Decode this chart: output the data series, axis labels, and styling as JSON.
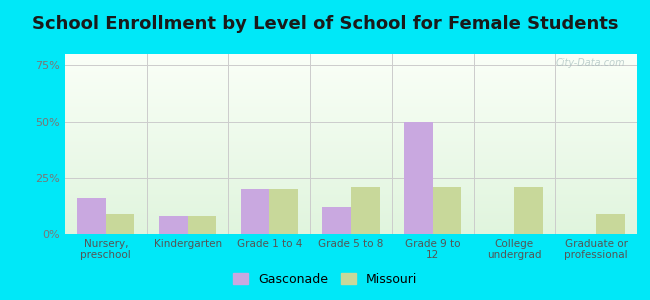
{
  "title": "School Enrollment by Level of School for Female Students",
  "categories": [
    "Nursery,\npreschool",
    "Kindergarten",
    "Grade 1 to 4",
    "Grade 5 to 8",
    "Grade 9 to\n12",
    "College\nundergrad",
    "Graduate or\nprofessional"
  ],
  "gasconade": [
    16,
    8,
    20,
    12,
    50,
    0,
    0
  ],
  "missouri": [
    9,
    8,
    20,
    21,
    21,
    21,
    9
  ],
  "bar_color_gasconade": "#c9a8e0",
  "bar_color_missouri": "#c8d89a",
  "background_outer": "#00e8f8",
  "ylim": [
    0,
    80
  ],
  "yticks": [
    0,
    25,
    50,
    75
  ],
  "ytick_labels": [
    "0%",
    "25%",
    "50%",
    "75%"
  ],
  "title_fontsize": 13,
  "legend_labels": [
    "Gasconade",
    "Missouri"
  ],
  "bar_width": 0.35,
  "grid_color": "#cccccc",
  "watermark": "City-Data.com"
}
